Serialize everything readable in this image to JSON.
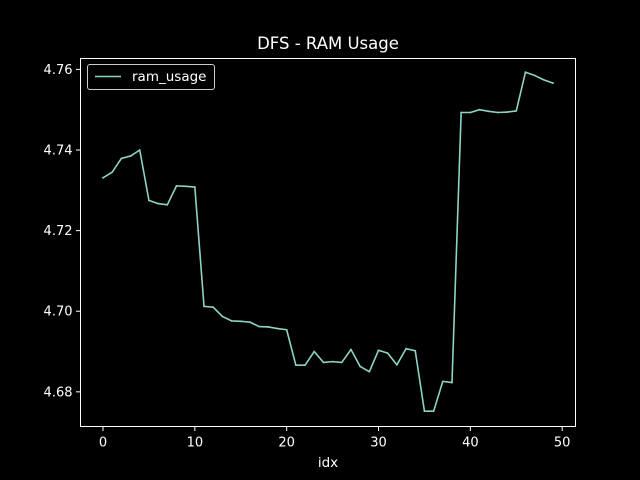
{
  "chart_data": {
    "type": "line",
    "title": "DFS - RAM Usage",
    "xlabel": "idx",
    "ylabel": "",
    "xlim": [
      -2.45,
      51.45
    ],
    "ylim": [
      4.6714,
      4.7627
    ],
    "x_ticks": [
      0,
      10,
      20,
      30,
      40,
      50
    ],
    "y_ticks": [
      4.68,
      4.7,
      4.72,
      4.74,
      4.76
    ],
    "y_tick_labels": [
      "4.68",
      "4.70",
      "4.72",
      "4.74",
      "4.76"
    ],
    "grid": false,
    "legend": "upper-left",
    "series": [
      {
        "name": "ram_usage",
        "color": "#8dd3c7",
        "x": [
          0,
          1,
          2,
          3,
          4,
          5,
          6,
          7,
          8,
          9,
          10,
          11,
          12,
          13,
          14,
          15,
          16,
          17,
          18,
          19,
          20,
          21,
          22,
          23,
          24,
          25,
          26,
          27,
          28,
          29,
          30,
          31,
          32,
          33,
          34,
          35,
          36,
          37,
          38,
          39,
          40,
          41,
          42,
          43,
          44,
          45,
          46,
          47,
          48,
          49
        ],
        "values": [
          4.7331,
          4.7345,
          4.7379,
          4.7385,
          4.74,
          4.7275,
          4.7267,
          4.7264,
          4.7311,
          4.731,
          4.7308,
          4.7012,
          4.701,
          4.6987,
          4.6976,
          4.6975,
          4.6973,
          4.6962,
          4.6961,
          4.6957,
          4.6954,
          4.6866,
          4.6866,
          4.69,
          4.6873,
          4.6875,
          4.6873,
          4.6905,
          4.6863,
          4.685,
          4.6903,
          4.6896,
          4.6867,
          4.6907,
          4.6902,
          4.6752,
          4.6752,
          4.6826,
          4.6823,
          4.7493,
          4.7493,
          4.75,
          4.7496,
          4.7493,
          4.7494,
          4.7497,
          4.7593,
          4.7585,
          4.7574,
          4.7566
        ]
      }
    ]
  }
}
